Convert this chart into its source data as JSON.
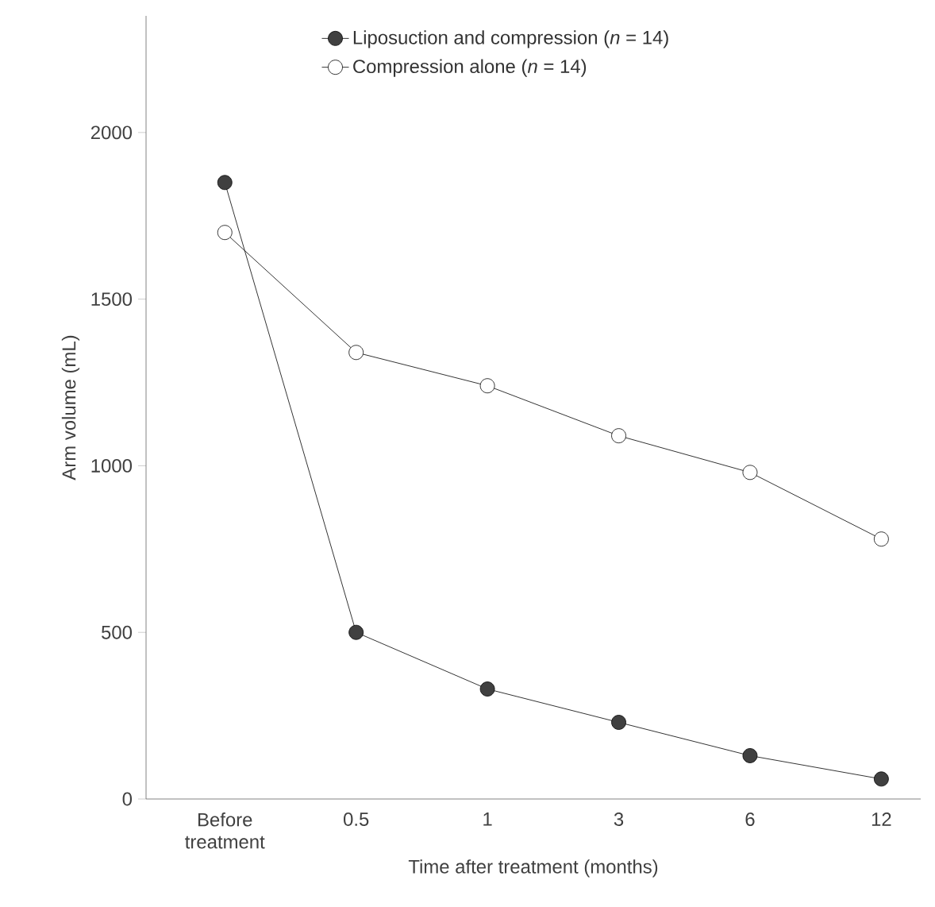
{
  "chart_data": {
    "type": "line",
    "xlabel": "Time after treatment (months)",
    "ylabel": "Arm volume (mL)",
    "categories": [
      "Before treatment",
      "0.5",
      "1",
      "3",
      "6",
      "12"
    ],
    "series": [
      {
        "name": "Liposuction and compression (*n* = 14)",
        "color": "#404040",
        "values": [
          1850,
          500,
          330,
          230,
          130,
          60
        ]
      },
      {
        "name": "Compression alone (*n* = 14)",
        "color": "#ffffff",
        "values": [
          1700,
          1340,
          1240,
          1090,
          980,
          780
        ]
      }
    ],
    "ylim": [
      0,
      2350
    ],
    "yticks": [
      0,
      500,
      1000,
      1500,
      2000
    ],
    "marker": "circle",
    "line_style": "solid",
    "grid": false,
    "legend": "top"
  }
}
